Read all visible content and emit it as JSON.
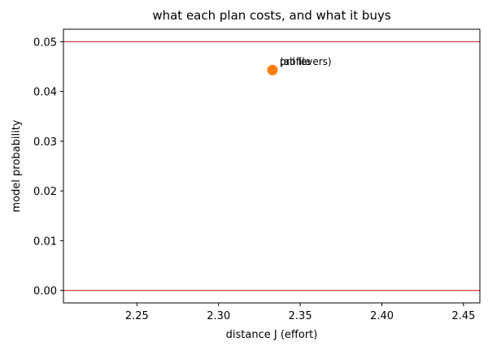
{
  "chart_data": {
    "type": "scatter",
    "title": "what each plan costs, and what it buys",
    "xlabel": "distance J (effort)",
    "ylabel": "model probability",
    "xlim": [
      2.205,
      2.46
    ],
    "ylim": [
      -0.0025,
      0.0525
    ],
    "xticks": [
      2.25,
      2.3,
      2.35,
      2.4,
      2.45
    ],
    "xtick_labels": [
      "2.25",
      "2.30",
      "2.35",
      "2.40",
      "2.45"
    ],
    "yticks": [
      0.0,
      0.01,
      0.02,
      0.03,
      0.04,
      0.05
    ],
    "ytick_labels": [
      "0.00",
      "0.01",
      "0.02",
      "0.03",
      "0.04",
      "0.05"
    ],
    "hlines": [
      {
        "y": 0.05,
        "color": "#d62728"
      },
      {
        "y": 0.0,
        "color": "#d62728"
      }
    ],
    "points": [
      {
        "x": 2.333,
        "y": 0.0443,
        "color": "#ff7f0e"
      }
    ],
    "annotations": [
      {
        "text": "(all levers)",
        "x": 2.333,
        "y": 0.0443
      },
      {
        "text": "profile",
        "x": 2.333,
        "y": 0.0443
      }
    ],
    "grid": false,
    "legend": "none"
  }
}
